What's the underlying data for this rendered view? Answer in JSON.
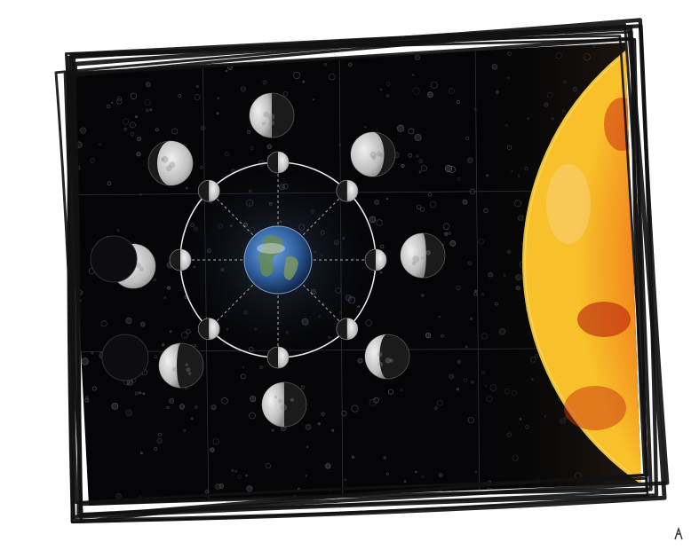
{
  "diagram": {
    "kind": "moon-phases-around-earth",
    "phases": [
      {
        "key": "new",
        "inner_lit": "none"
      },
      {
        "key": "waxing-crescent",
        "inner_lit": "right-sliver"
      },
      {
        "key": "first-quarter",
        "inner_lit": "right-half"
      },
      {
        "key": "waxing-gibbous",
        "inner_lit": "mostly-lit"
      },
      {
        "key": "full",
        "inner_lit": "full"
      },
      {
        "key": "waning-gibbous",
        "inner_lit": "mostly-lit"
      },
      {
        "key": "third-quarter",
        "inner_lit": "left-half"
      },
      {
        "key": "waning-crescent",
        "inner_lit": "left-sliver"
      }
    ],
    "center_body": "earth",
    "side_body": "sun"
  },
  "colors": {
    "space": "#050507",
    "frame_ink": "#111111",
    "moon_light": "#d8d8d8",
    "moon_dark": "#1a1a1a",
    "earth_blue": "#3c6fb0",
    "earth_land": "#6a8a55",
    "sun_core": "#d8321c",
    "sun_edge": "#f5b020",
    "orbit": "#e8e8e8"
  },
  "icons": [
    "earth-icon",
    "sun-icon",
    "moon-icon",
    "sketch-frame-icon"
  ]
}
